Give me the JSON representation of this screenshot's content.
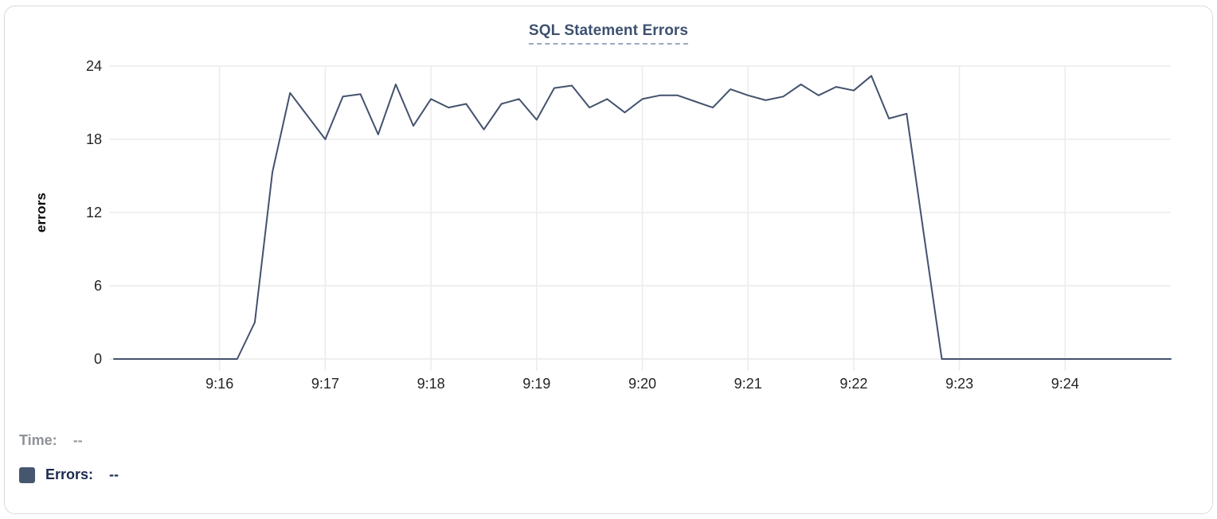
{
  "chart_data": {
    "type": "line",
    "title": "SQL Statement Errors",
    "ylabel": "errors",
    "series_name": "Errors",
    "x_tick_labels": [
      "9:16",
      "9:17",
      "9:18",
      "9:19",
      "9:20",
      "9:21",
      "9:22",
      "9:23",
      "9:24"
    ],
    "y_ticks": [
      0,
      6,
      12,
      18,
      24
    ],
    "ylim": [
      0,
      24
    ],
    "grid": true,
    "x_start": "9:15:00",
    "x_end": "9:25:00",
    "sample_interval_seconds": 10,
    "values": [
      0,
      0,
      0,
      0,
      0,
      0,
      0,
      0,
      3,
      15.3,
      21.8,
      19.9,
      18,
      21.5,
      21.7,
      18.4,
      22.5,
      19.1,
      21.3,
      20.6,
      20.9,
      18.8,
      20.9,
      21.3,
      19.6,
      22.2,
      22.4,
      20.6,
      21.3,
      20.2,
      21.3,
      21.6,
      21.6,
      21.1,
      20.6,
      22.1,
      21.6,
      21.2,
      21.5,
      22.5,
      21.6,
      22.3,
      22.0,
      23.2,
      19.7,
      20.1,
      10,
      0,
      0,
      0,
      0,
      0,
      0,
      0,
      0,
      0,
      0,
      0,
      0,
      0,
      0
    ]
  },
  "legend": {
    "time_label": "Time:",
    "time_value": "--",
    "errors_label": "Errors:",
    "errors_value": "--"
  },
  "colors": {
    "line": "#43526d",
    "grid": "#ececec",
    "tick_text": "#222427",
    "title_text": "#3e5170",
    "title_underline": "#9aa7bf",
    "time_text": "#8e9298",
    "errors_text": "#1d2a4d",
    "swatch": "#47566f",
    "card_border": "#dadada"
  }
}
